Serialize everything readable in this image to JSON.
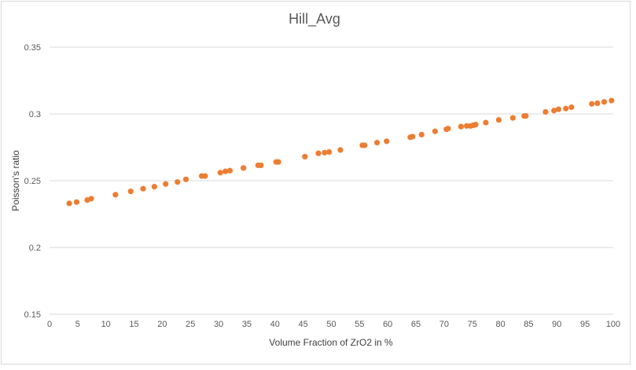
{
  "chart_data": {
    "type": "scatter",
    "title": "Hill_Avg",
    "xlabel": "Volume Fraction of ZrO2 in %",
    "ylabel": "Poisson's ratio",
    "xlim": [
      0,
      100
    ],
    "ylim": [
      0.15,
      0.35
    ],
    "x_ticks": [
      "0",
      "5",
      "10",
      "15",
      "20",
      "25",
      "30",
      "35",
      "40",
      "45",
      "50",
      "55",
      "60",
      "65",
      "70",
      "75",
      "80",
      "85",
      "90",
      "95",
      "100"
    ],
    "y_ticks": [
      "0.15",
      "0.2",
      "0.25",
      "0.3",
      "0.35"
    ],
    "grid": "horizontal",
    "legend": "none",
    "marker_color": "#ED7D31",
    "series": [
      {
        "points": [
          [
            3.5,
            0.233
          ],
          [
            4.8,
            0.234
          ],
          [
            6.7,
            0.2355
          ],
          [
            7.4,
            0.2365
          ],
          [
            11.7,
            0.2395
          ],
          [
            14.4,
            0.242
          ],
          [
            16.6,
            0.244
          ],
          [
            18.6,
            0.2455
          ],
          [
            20.6,
            0.2475
          ],
          [
            22.7,
            0.249
          ],
          [
            24.2,
            0.251
          ],
          [
            27.0,
            0.2535
          ],
          [
            27.6,
            0.2535
          ],
          [
            30.3,
            0.256
          ],
          [
            31.2,
            0.257
          ],
          [
            32.0,
            0.2575
          ],
          [
            34.4,
            0.2595
          ],
          [
            37.0,
            0.2615
          ],
          [
            37.5,
            0.2615
          ],
          [
            40.2,
            0.264
          ],
          [
            40.6,
            0.264
          ],
          [
            45.3,
            0.268
          ],
          [
            47.7,
            0.2705
          ],
          [
            48.8,
            0.271
          ],
          [
            49.6,
            0.2715
          ],
          [
            51.6,
            0.273
          ],
          [
            55.5,
            0.2765
          ],
          [
            55.9,
            0.2765
          ],
          [
            58.1,
            0.2785
          ],
          [
            59.8,
            0.2795
          ],
          [
            64.0,
            0.2825
          ],
          [
            64.4,
            0.283
          ],
          [
            66.0,
            0.2845
          ],
          [
            68.4,
            0.287
          ],
          [
            70.4,
            0.2885
          ],
          [
            70.7,
            0.289
          ],
          [
            73.0,
            0.2905
          ],
          [
            74.0,
            0.291
          ],
          [
            74.7,
            0.291
          ],
          [
            75.2,
            0.2915
          ],
          [
            75.6,
            0.292
          ],
          [
            77.4,
            0.2935
          ],
          [
            79.7,
            0.2955
          ],
          [
            82.2,
            0.297
          ],
          [
            84.2,
            0.2985
          ],
          [
            84.5,
            0.2985
          ],
          [
            88.0,
            0.3015
          ],
          [
            89.5,
            0.3025
          ],
          [
            90.3,
            0.3035
          ],
          [
            91.6,
            0.304
          ],
          [
            92.6,
            0.305
          ],
          [
            96.2,
            0.3075
          ],
          [
            97.2,
            0.308
          ],
          [
            98.4,
            0.309
          ],
          [
            99.7,
            0.31
          ]
        ]
      }
    ]
  }
}
